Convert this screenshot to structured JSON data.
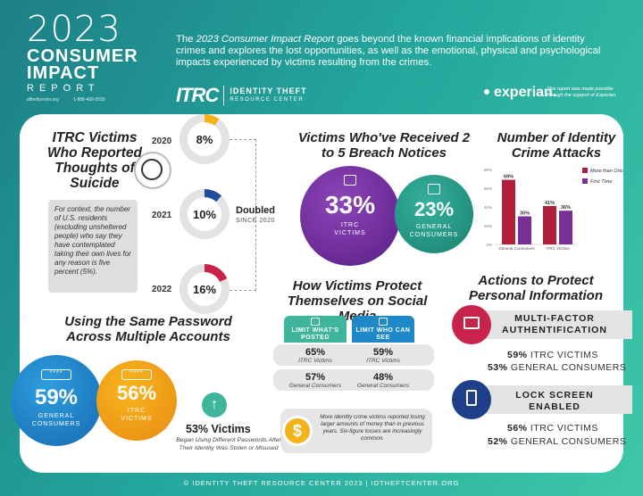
{
  "header": {
    "year": "2023",
    "title_line1": "CONSUMER",
    "title_line2": "IMPACT",
    "title_line3": "REPORT",
    "website_small": "idtheftcenter.org",
    "phone_small": "1-888-400-5530",
    "intro_prefix": "The ",
    "intro_italic": "2023 Consumer Impact Report",
    "intro_rest": " goes beyond the known financial implications of identity crimes and explores the lost opportunities, as well as the emotional, physical and psychological impacts experienced by victims resulting from the crimes.",
    "itrc_mark": "ITRC",
    "itrc_name": "IDENTITY THEFT",
    "itrc_sub": "RESOURCE CENTER",
    "sponsor_logo": "experian.",
    "sponsor_note": "This report was made possible through the support of Experian."
  },
  "suicide": {
    "title": "ITRC Victims Who Reported Thoughts of Suicide",
    "context": "For context, the number of U.S. residents (excluding unsheltered people) who say they have contemplated taking their own lives for any reason is five percent (5%).",
    "points": [
      {
        "year": "2020",
        "value": "8%"
      },
      {
        "year": "2021",
        "value": "10%"
      },
      {
        "year": "2022",
        "value": "16%"
      }
    ],
    "doubled": "Doubled",
    "doubled_sub": "SINCE 2020"
  },
  "breach": {
    "title": "Victims Who've Received 2 to 5 Breach Notices",
    "itrc_value": "33%",
    "itrc_label_1": "ITRC",
    "itrc_label_2": "VICTIMS",
    "general_value": "23%",
    "general_label_1": "GENERAL",
    "general_label_2": "CONSUMERS"
  },
  "attacks": {
    "title": "Number of Identity Crime Attacks"
  },
  "chart_data": {
    "type": "bar",
    "title": "Number of Identity Crime Attacks",
    "categories": [
      "General Consumers",
      "ITRC Victims"
    ],
    "series": [
      {
        "name": "More than Once",
        "values": [
          69,
          41
        ],
        "color": "#b01f3c"
      },
      {
        "name": "First Time",
        "values": [
          30,
          36
        ],
        "color": "#7a2f95"
      }
    ],
    "data_labels": [
      [
        "69%",
        "30%"
      ],
      [
        "41%",
        "36%"
      ]
    ],
    "yticks": [
      "0%",
      "20%",
      "40%",
      "60%",
      "80%"
    ],
    "ylim": [
      0,
      80
    ],
    "legend": "top-right"
  },
  "social": {
    "title": "How Victims Protect Themselves on Social Media",
    "col1": "LIMIT WHAT'S POSTED",
    "col2": "LIMIT WHO CAN SEE",
    "rows": [
      {
        "v1": "65%",
        "l1": "ITRC Victims",
        "v2": "59%",
        "l2": "ITRC Victims"
      },
      {
        "v1": "57%",
        "l1": "General Consumers",
        "v2": "48%",
        "l2": "General Consumers"
      }
    ],
    "money_note": "More identity crime victims reported losing larger amounts of money than in previous years. Six-figure losses are increasingly common.",
    "coin_symbol": "$"
  },
  "actions": {
    "title": "Actions to Protect Personal Information",
    "items": [
      {
        "name_1": "MULTI-FACTOR",
        "name_2": "AUTHENTIFICATION",
        "itrc": "59%",
        "itrc_label": " ITRC VICTIMS",
        "general": "53%",
        "general_label": " GENERAL CONSUMERS"
      },
      {
        "name_1": "LOCK SCREEN",
        "name_2": "ENABLED",
        "itrc": "56%",
        "itrc_label": " ITRC VICTIMS",
        "general": "52%",
        "general_label": " GENERAL CONSUMERS"
      }
    ]
  },
  "password": {
    "title": "Using the Same Password Across Multiple Accounts",
    "general_value": "59%",
    "general_label_1": "GENERAL",
    "general_label_2": "CONSUMERS",
    "itrc_value": "56%",
    "itrc_label_1": "ITRC",
    "itrc_label_2": "VICTIMS",
    "pw_mask": "****",
    "stat": "53% Victims",
    "stat_sub": "Began Using Different Passwords After Their Identity Was Stolen or Misused"
  },
  "footer": "© IDENTITY THEFT RESOURCE CENTER 2023 | IDTHEFTCENTER.ORG"
}
